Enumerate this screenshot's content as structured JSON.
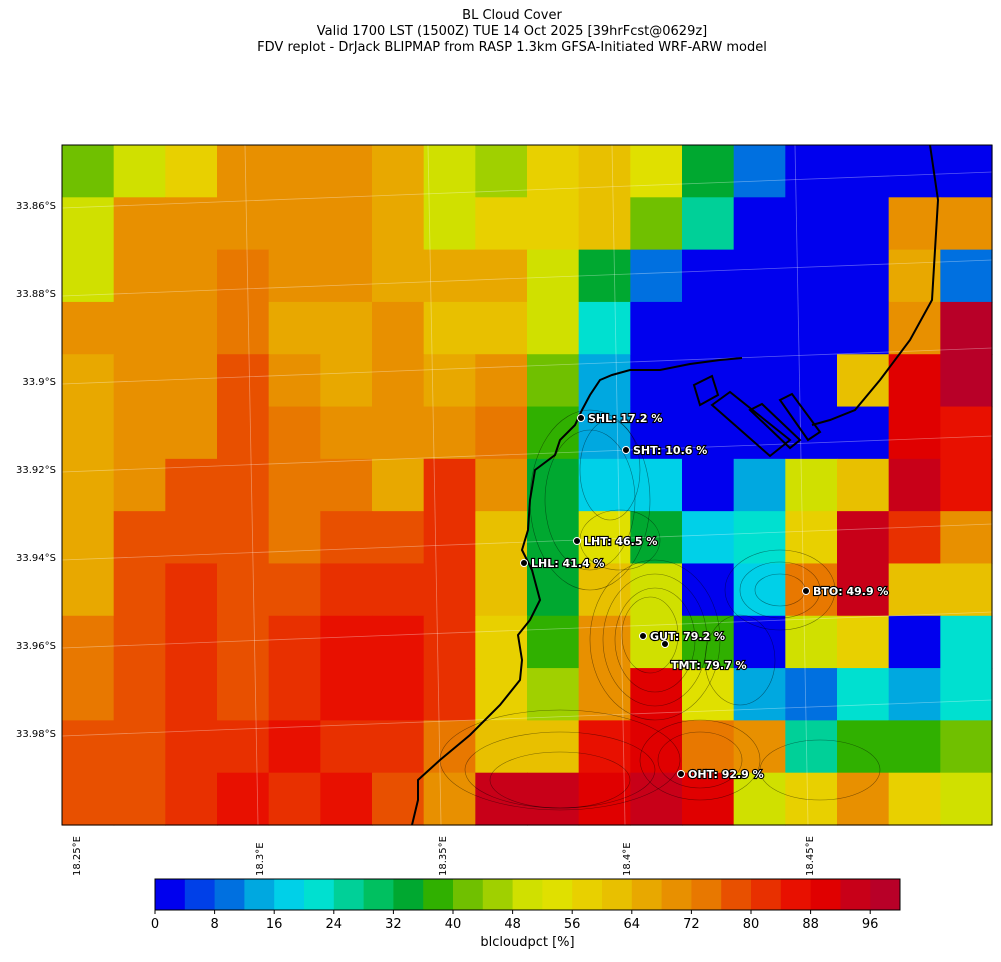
{
  "title": {
    "line1": "BL Cloud Cover",
    "line2": "Valid 1700 LST (1500Z) TUE 14 Oct 2025 [39hrFcst@0629z]",
    "line3": "FDV replot - DrJack BLIPMAP from RASP 1.3km GFSA-Initiated WRF-ARW model"
  },
  "axes": {
    "lat_labels": [
      "33.86°S",
      "33.88°S",
      "33.9°S",
      "33.92°S",
      "33.94°S",
      "33.96°S",
      "33.98°S"
    ],
    "lon_labels": [
      "18.25°E",
      "18.3°E",
      "18.35°E",
      "18.4°E",
      "18.45°E"
    ]
  },
  "colorbar": {
    "label": "blcloudpct [%]",
    "ticks": [
      "0",
      "8",
      "16",
      "24",
      "32",
      "40",
      "48",
      "56",
      "64",
      "72",
      "80",
      "88",
      "96"
    ],
    "range": [
      0,
      100
    ],
    "bins": 25,
    "colors": [
      "#0000ee",
      "#0040e8",
      "#0070e0",
      "#00a8e0",
      "#00d0e8",
      "#00e0d0",
      "#00d098",
      "#00c060",
      "#00a830",
      "#30b000",
      "#70c000",
      "#a0d000",
      "#d0e000",
      "#e0e000",
      "#e8d000",
      "#e8c000",
      "#e8a800",
      "#e89000",
      "#e87800",
      "#e85000",
      "#e83000",
      "#e81000",
      "#e00000",
      "#c80018",
      "#b80028"
    ]
  },
  "chart_data": {
    "type": "heatmap",
    "title": "BL Cloud Cover",
    "variable": "blcloudpct",
    "units": "%",
    "grid_columns": 18,
    "grid_rows": 13,
    "cells": [
      [
        42,
        50,
        58,
        70,
        70,
        70,
        66,
        50,
        46,
        58,
        62,
        52,
        34,
        10,
        2,
        2,
        2,
        2
      ],
      [
        50,
        70,
        70,
        70,
        70,
        70,
        66,
        50,
        58,
        58,
        62,
        42,
        26,
        2,
        2,
        2,
        70,
        70
      ],
      [
        50,
        70,
        70,
        72,
        70,
        70,
        66,
        66,
        66,
        50,
        34,
        10,
        2,
        2,
        2,
        2,
        66,
        10
      ],
      [
        70,
        70,
        70,
        72,
        66,
        66,
        70,
        62,
        62,
        50,
        22,
        2,
        2,
        2,
        2,
        2,
        70,
        98
      ],
      [
        66,
        70,
        70,
        78,
        70,
        66,
        70,
        66,
        70,
        42,
        14,
        2,
        2,
        2,
        2,
        62,
        90,
        98
      ],
      [
        66,
        70,
        70,
        78,
        72,
        70,
        70,
        70,
        72,
        38,
        14,
        2,
        2,
        2,
        2,
        2,
        90,
        86
      ],
      [
        66,
        70,
        78,
        78,
        72,
        72,
        66,
        80,
        70,
        34,
        18,
        18,
        2,
        14,
        50,
        62,
        94,
        86
      ],
      [
        66,
        78,
        78,
        78,
        72,
        78,
        78,
        82,
        62,
        34,
        54,
        34,
        18,
        22,
        58,
        94,
        82,
        70
      ],
      [
        66,
        78,
        82,
        78,
        78,
        82,
        82,
        82,
        62,
        34,
        62,
        50,
        2,
        18,
        74,
        94,
        62,
        62
      ],
      [
        74,
        78,
        82,
        78,
        82,
        86,
        86,
        80,
        58,
        38,
        70,
        50,
        38,
        2,
        50,
        58,
        2,
        22
      ],
      [
        74,
        78,
        82,
        78,
        82,
        86,
        86,
        80,
        58,
        46,
        70,
        90,
        54,
        14,
        10,
        22,
        14,
        22
      ],
      [
        78,
        78,
        82,
        82,
        86,
        82,
        80,
        72,
        62,
        62,
        86,
        90,
        74,
        70,
        26,
        38,
        38,
        42
      ],
      [
        78,
        78,
        82,
        86,
        82,
        86,
        78,
        70,
        94,
        94,
        90,
        94,
        90,
        50,
        58,
        70,
        58,
        50
      ]
    ],
    "stations": [
      {
        "code": "SHL",
        "label": "SHL: 17.2 %",
        "value": 17.2
      },
      {
        "code": "SHT",
        "label": "SHT: 10.6 %",
        "value": 10.6
      },
      {
        "code": "LHT",
        "label": "LHT: 46.5 %",
        "value": 46.5
      },
      {
        "code": "LHL",
        "label": "LHL: 41.4 %",
        "value": 41.4
      },
      {
        "code": "BTO",
        "label": "BTO: 49.9 %",
        "value": 49.9
      },
      {
        "code": "GUT",
        "label": "GUT: 79.2 %",
        "value": 79.2
      },
      {
        "code": "TMT",
        "label": "TMT: 79.7 %",
        "value": 79.7
      },
      {
        "code": "OHT",
        "label": "OHT: 92.9 %",
        "value": 92.9
      }
    ]
  }
}
